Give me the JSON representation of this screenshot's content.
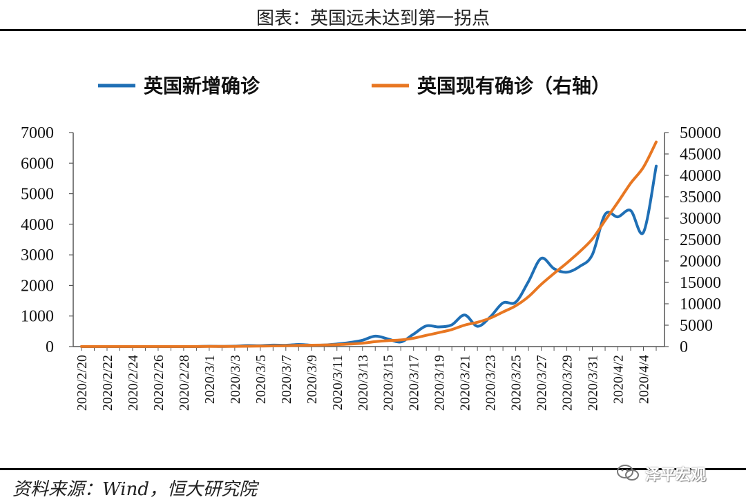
{
  "page": {
    "title": "图表：英国远未达到第一拐点",
    "source": "资料来源：Wind，恒大研究院",
    "watermark": "泽平宏观",
    "watermark_icon": "wechat-icon"
  },
  "chart_data": {
    "type": "line",
    "title": "",
    "xlabel": "",
    "ylabel": "",
    "legend_placement": "top",
    "grid": false,
    "x": [
      "2020/2/20",
      "2020/2/21",
      "2020/2/22",
      "2020/2/23",
      "2020/2/24",
      "2020/2/25",
      "2020/2/26",
      "2020/2/27",
      "2020/2/28",
      "2020/2/29",
      "2020/3/1",
      "2020/3/2",
      "2020/3/3",
      "2020/3/4",
      "2020/3/5",
      "2020/3/6",
      "2020/3/7",
      "2020/3/8",
      "2020/3/9",
      "2020/3/10",
      "2020/3/11",
      "2020/3/12",
      "2020/3/13",
      "2020/3/14",
      "2020/3/15",
      "2020/3/16",
      "2020/3/17",
      "2020/3/18",
      "2020/3/19",
      "2020/3/20",
      "2020/3/21",
      "2020/3/22",
      "2020/3/23",
      "2020/3/24",
      "2020/3/25",
      "2020/3/26",
      "2020/3/27",
      "2020/3/28",
      "2020/3/29",
      "2020/3/30",
      "2020/3/31",
      "2020/4/1",
      "2020/4/2",
      "2020/4/3",
      "2020/4/4",
      "2020/4/5"
    ],
    "x_tick_labels": [
      "2020/2/20",
      "2020/2/22",
      "2020/2/24",
      "2020/2/26",
      "2020/2/28",
      "2020/3/1",
      "2020/3/3",
      "2020/3/5",
      "2020/3/7",
      "2020/3/9",
      "2020/3/11",
      "2020/3/13",
      "2020/3/15",
      "2020/3/17",
      "2020/3/19",
      "2020/3/21",
      "2020/3/23",
      "2020/3/25",
      "2020/3/27",
      "2020/3/29",
      "2020/3/31",
      "2020/4/2",
      "2020/4/4"
    ],
    "y_left": {
      "min": 0,
      "max": 7000,
      "ticks": [
        "0",
        "1000",
        "2000",
        "3000",
        "4000",
        "5000",
        "6000",
        "7000"
      ]
    },
    "y_right": {
      "min": 0,
      "max": 50000,
      "ticks": [
        "0",
        "5000",
        "10000",
        "15000",
        "20000",
        "25000",
        "30000",
        "35000",
        "40000",
        "45000",
        "50000"
      ]
    },
    "series": [
      {
        "name": "英国新增确诊",
        "axis": "left",
        "color": "#1f6fb5",
        "values": [
          0,
          0,
          0,
          0,
          0,
          0,
          0,
          0,
          0,
          0,
          12,
          4,
          13,
          34,
          29,
          48,
          43,
          67,
          46,
          50,
          83,
          134,
          208,
          342,
          251,
          152,
          407,
          676,
          643,
          714,
          1035,
          665,
          967,
          1427,
          1452,
          2129,
          2885,
          2546,
          2433,
          2619,
          3009,
          4324,
          4244,
          4450,
          3735,
          5903
        ]
      },
      {
        "name": "英国现有确诊（右轴）",
        "axis": "right",
        "color": "#e87722",
        "values": [
          9,
          9,
          9,
          9,
          9,
          9,
          13,
          15,
          20,
          23,
          35,
          39,
          51,
          85,
          115,
          163,
          206,
          273,
          321,
          373,
          456,
          590,
          798,
          1140,
          1391,
          1543,
          1950,
          2626,
          3269,
          3983,
          5018,
          5683,
          6650,
          8077,
          9529,
          11658,
          14543,
          17089,
          19522,
          22141,
          25150,
          29474,
          33718,
          38168,
          41903,
          47806
        ]
      }
    ]
  }
}
